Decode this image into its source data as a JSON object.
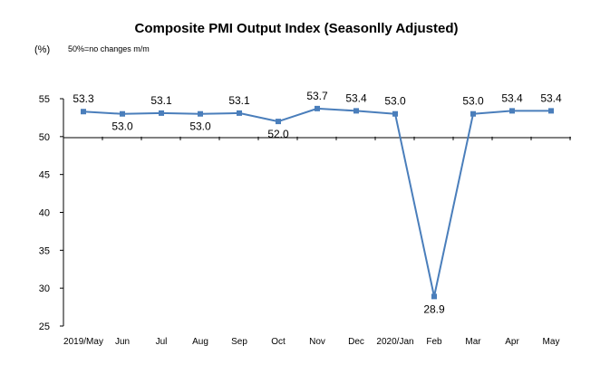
{
  "chart_data": {
    "type": "line",
    "title": "Composite PMI Output Index (Seasonlly Adjusted)",
    "unit_label": "(%)",
    "note": "50%=no changes  m/m",
    "xlabel": "",
    "ylabel": "",
    "ylim": [
      25,
      55
    ],
    "yticks": [
      25,
      30,
      35,
      40,
      45,
      50,
      55
    ],
    "ytick_labels": [
      "25",
      "30",
      "35",
      "40",
      "45",
      "50",
      "55"
    ],
    "reference_line": 50,
    "grid": false,
    "legend": "none",
    "categories": [
      "2019/May",
      "Jun",
      "Jul",
      "Aug",
      "Sep",
      "Oct",
      "Nov",
      "Dec",
      "2020/Jan",
      "Feb",
      "Mar",
      "Apr",
      "May"
    ],
    "series": [
      {
        "values": [
          53.3,
          53.0,
          53.1,
          53.0,
          53.1,
          52.0,
          53.7,
          53.4,
          53.0,
          28.9,
          53.0,
          53.4,
          53.4
        ],
        "value_labels": [
          "53.3",
          "53.0",
          "53.1",
          "53.0",
          "53.1",
          "52.0",
          "53.7",
          "53.4",
          "53.0",
          "28.9",
          "53.0",
          "53.4",
          "53.4"
        ],
        "color": "#4A7EBB",
        "marker": "square"
      }
    ]
  }
}
